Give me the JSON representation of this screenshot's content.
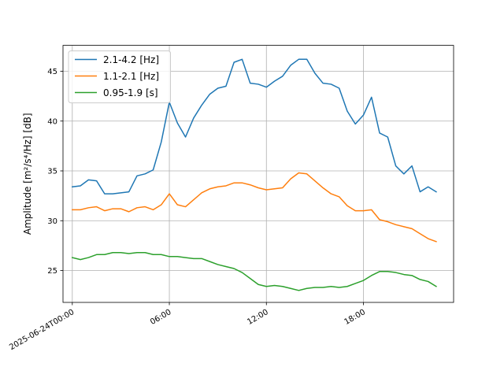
{
  "chart_data": {
    "type": "line",
    "title": "",
    "xlabel": "",
    "ylabel": "Amplitude [m²/s⁴/Hz] [dB]",
    "x_unit": "hours",
    "xlim": [
      -0.575,
      23.575
    ],
    "ylim": [
      21.8,
      47.6
    ],
    "x_ticks": [
      {
        "value": 0,
        "label": "2025-06-24T00:00"
      },
      {
        "value": 6,
        "label": "06:00"
      },
      {
        "value": 12,
        "label": "12:00"
      },
      {
        "value": 18,
        "label": "18:00"
      }
    ],
    "y_ticks": [
      25,
      30,
      35,
      40,
      45
    ],
    "grid": true,
    "legend": "top-left",
    "x": [
      0,
      0.5,
      1,
      1.5,
      2,
      2.5,
      3,
      3.5,
      4,
      4.5,
      5,
      5.5,
      6,
      6.5,
      7,
      7.5,
      8,
      8.5,
      9,
      9.5,
      10,
      10.5,
      11,
      11.5,
      12,
      12.5,
      13,
      13.5,
      14,
      14.5,
      15,
      15.5,
      16,
      16.5,
      17,
      17.5,
      18,
      18.5,
      19,
      19.5,
      20,
      20.5,
      21,
      21.5,
      22,
      22.5
    ],
    "series": [
      {
        "name": "2.1-4.2 [Hz]",
        "color": "#1f77b4",
        "values": [
          33.4,
          33.5,
          34.1,
          34.0,
          32.7,
          32.7,
          32.8,
          32.9,
          34.5,
          34.7,
          35.1,
          37.9,
          41.9,
          39.8,
          38.4,
          40.3,
          41.6,
          42.7,
          43.3,
          43.5,
          45.9,
          46.2,
          43.8,
          43.7,
          43.4,
          44.0,
          44.5,
          45.6,
          46.2,
          46.2,
          44.8,
          43.8,
          43.7,
          43.3,
          41.0,
          39.7,
          40.6,
          42.4,
          38.8,
          38.4,
          35.5,
          34.7,
          35.5,
          32.9,
          33.4,
          32.9
        ]
      },
      {
        "name": "1.1-2.1 [Hz]",
        "color": "#ff7f0e",
        "values": [
          31.1,
          31.1,
          31.3,
          31.4,
          31.0,
          31.2,
          31.2,
          30.9,
          31.3,
          31.4,
          31.1,
          31.6,
          32.7,
          31.6,
          31.4,
          32.1,
          32.8,
          33.2,
          33.4,
          33.5,
          33.8,
          33.8,
          33.6,
          33.3,
          33.1,
          33.2,
          33.3,
          34.2,
          34.8,
          34.7,
          34.0,
          33.3,
          32.7,
          32.4,
          31.5,
          31.0,
          31.0,
          31.1,
          30.1,
          29.9,
          29.6,
          29.4,
          29.2,
          28.7,
          28.2,
          27.9
        ]
      },
      {
        "name": "0.95-1.9 [s]",
        "color": "#2ca02c",
        "values": [
          26.3,
          26.1,
          26.3,
          26.6,
          26.6,
          26.8,
          26.8,
          26.7,
          26.8,
          26.8,
          26.6,
          26.6,
          26.4,
          26.4,
          26.3,
          26.2,
          26.2,
          25.9,
          25.6,
          25.4,
          25.2,
          24.8,
          24.2,
          23.6,
          23.4,
          23.5,
          23.4,
          23.2,
          23.0,
          23.2,
          23.3,
          23.3,
          23.4,
          23.3,
          23.4,
          23.7,
          24.0,
          24.5,
          24.9,
          24.9,
          24.8,
          24.6,
          24.5,
          24.1,
          23.9,
          23.4
        ]
      }
    ]
  }
}
